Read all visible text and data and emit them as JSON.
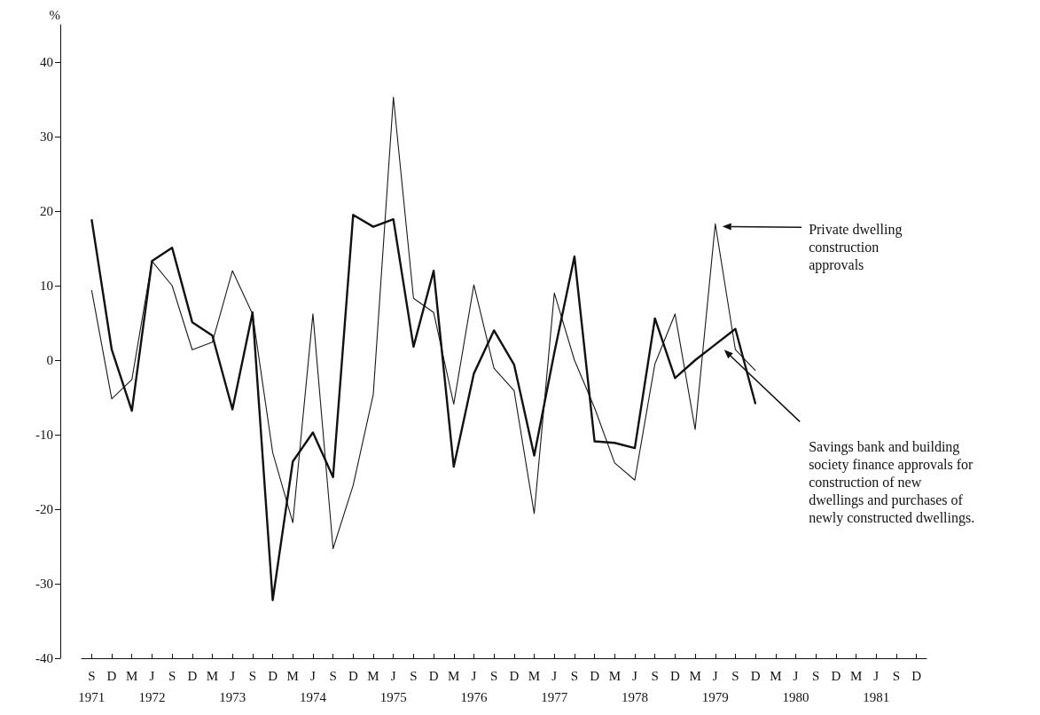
{
  "chart_data": {
    "type": "line",
    "ylabel": "%",
    "categories": [
      "S\n1971",
      "D",
      "M",
      "J\n1972",
      "S",
      "D",
      "M",
      "J\n1973",
      "S",
      "D",
      "M",
      "J\n1974",
      "S",
      "D",
      "M",
      "J\n1975",
      "S",
      "D",
      "M",
      "J\n1976",
      "S",
      "D",
      "M",
      "J\n1977",
      "S",
      "D",
      "M",
      "J\n1978",
      "S",
      "D",
      "M",
      "J\n1979",
      "S",
      "D",
      "M",
      "J\n1980",
      "S",
      "D",
      "M",
      "J\n1981",
      "S",
      "D"
    ],
    "series": [
      {
        "name": "Private dwelling construction approvals",
        "color": "#1a1a1a",
        "values": [
          9.4,
          -5.2,
          -2.6,
          13.3,
          10,
          1.4,
          2.4,
          12,
          6.2,
          -12.4,
          -21.8,
          6.2,
          -25.3,
          -16.8,
          -4.6,
          35.3,
          8.3,
          6.4,
          -5.9,
          10.1,
          -1.1,
          -4.1,
          -20.6,
          9,
          0,
          -6.4,
          -13.8,
          -16.1,
          -0.5,
          6.2,
          -9.3,
          18.3,
          1.4,
          -1.4,
          null,
          null,
          null,
          null,
          null,
          null,
          null,
          null
        ]
      },
      {
        "name": "Savings bank and building society finance approvals for construction of new dwellings and purchases of newly constructed dwellings.",
        "color": "#111111",
        "values": [
          18.9,
          1.4,
          -6.8,
          13.3,
          15.1,
          5.1,
          3.3,
          -6.6,
          6.4,
          -32.2,
          -13.6,
          -9.7,
          -15.7,
          19.5,
          17.9,
          18.9,
          1.8,
          12,
          -14.3,
          -1.8,
          4,
          -0.6,
          -12.8,
          1,
          13.9,
          -10.9,
          -11.1,
          -11.8,
          5.6,
          -2.4,
          0,
          2.1,
          4.2,
          -5.9,
          null,
          null,
          null,
          null,
          null,
          null,
          null,
          null
        ]
      }
    ],
    "ylim": [
      -40,
      45
    ],
    "yticks": [
      -40,
      -30,
      -20,
      -10,
      0,
      10,
      20,
      30,
      40
    ],
    "grid": false,
    "marker": "none"
  }
}
